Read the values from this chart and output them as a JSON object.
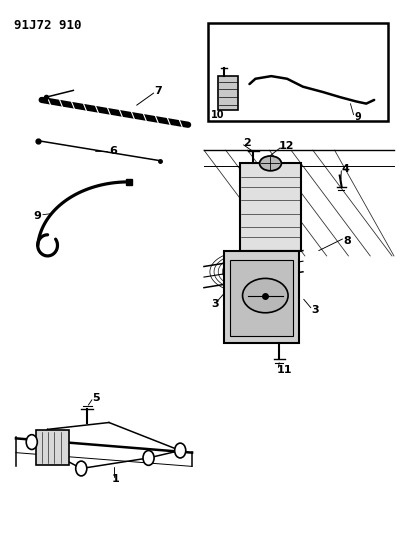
{
  "title_code": "91J72 910",
  "background_color": "#ffffff",
  "line_color": "#000000",
  "fig_width": 4.0,
  "fig_height": 5.33
}
